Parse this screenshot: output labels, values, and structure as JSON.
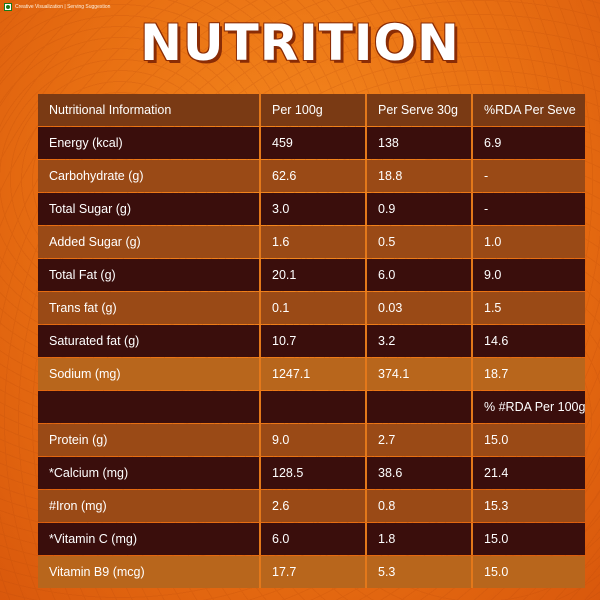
{
  "caption": "Creative Visualization | Serving Suggestion",
  "title": "NUTRITION",
  "table": {
    "headers": [
      "Nutritional Information",
      "Per 100g",
      "Per Serve 30g",
      "%RDA Per Seve"
    ],
    "rows": [
      [
        "Energy (kcal)",
        "459",
        "138",
        "6.9"
      ],
      [
        "Carbohydrate (g)",
        "62.6",
        "18.8",
        "-"
      ],
      [
        "Total Sugar (g)",
        "3.0",
        "0.9",
        "-"
      ],
      [
        "Added Sugar (g)",
        "1.6",
        "0.5",
        "1.0"
      ],
      [
        "Total Fat (g)",
        "20.1",
        "6.0",
        "9.0"
      ],
      [
        "Trans fat (g)",
        "0.1",
        "0.03",
        "1.5"
      ],
      [
        "Saturated fat (g)",
        "10.7",
        "3.2",
        "14.6"
      ],
      [
        "Sodium (mg)",
        "1247.1",
        "374.1",
        "18.7"
      ],
      [
        "",
        "",
        "",
        "% #RDA Per 100g"
      ],
      [
        "Protein (g)",
        "9.0",
        "2.7",
        "15.0"
      ],
      [
        "*Calcium (mg)",
        "128.5",
        "38.6",
        "21.4"
      ],
      [
        "#Iron (mg)",
        "2.6",
        "0.8",
        "15.3"
      ],
      [
        "*Vitamin C (mg)",
        "6.0",
        "1.8",
        "15.0"
      ],
      [
        "Vitamin B9 (mcg)",
        "17.7",
        "5.3",
        "15.0"
      ]
    ]
  }
}
